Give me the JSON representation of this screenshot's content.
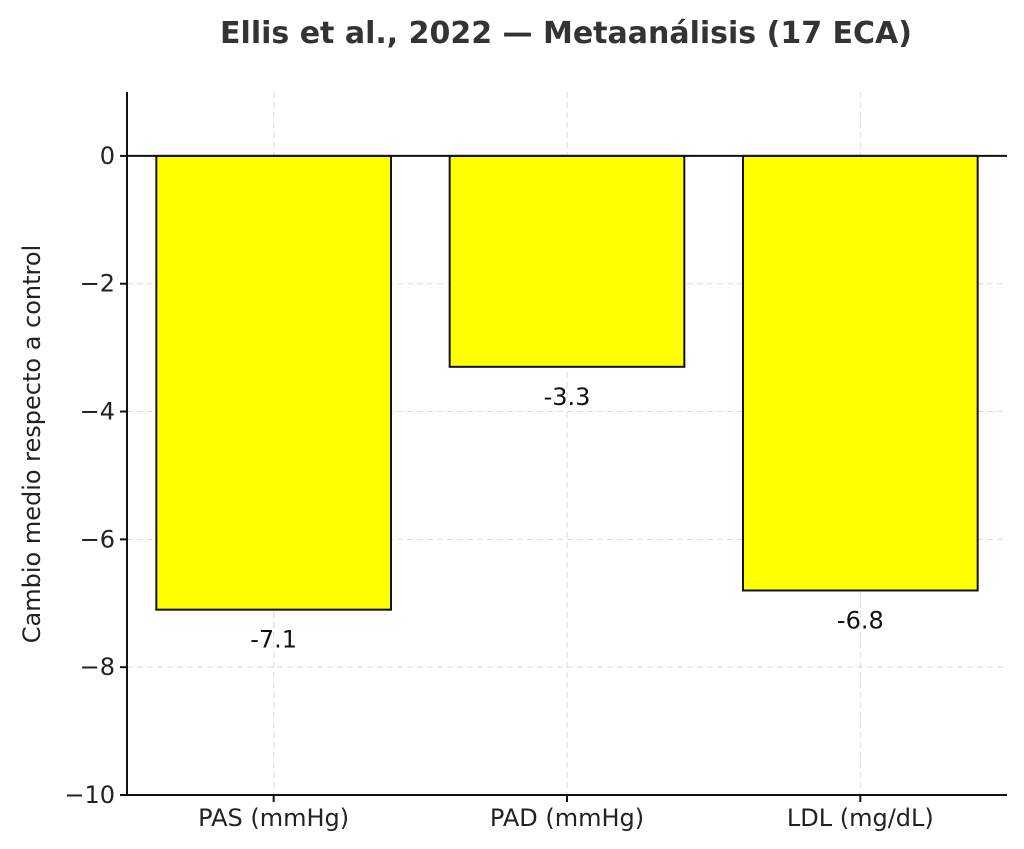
{
  "chart_data": {
    "type": "bar",
    "title": "Ellis et al., 2022 — Metaanálisis (17 ECA)",
    "xlabel": "",
    "ylabel": "Cambio medio respecto a control",
    "categories": [
      "PAS (mmHg)",
      "PAD (mmHg)",
      "LDL (mg/dL)"
    ],
    "values": [
      -7.1,
      -3.3,
      -6.8
    ],
    "data_labels": [
      "-7.1",
      "-3.3",
      "-6.8"
    ],
    "ylim": [
      -10,
      1
    ],
    "yticks": [
      0,
      -2,
      -4,
      -6,
      -8,
      -10
    ],
    "ytick_labels": [
      "0",
      "−2",
      "−4",
      "−6",
      "−8",
      "−10"
    ],
    "grid": true,
    "bar_color": "#ffff00",
    "bar_edge_color": "#111111"
  }
}
